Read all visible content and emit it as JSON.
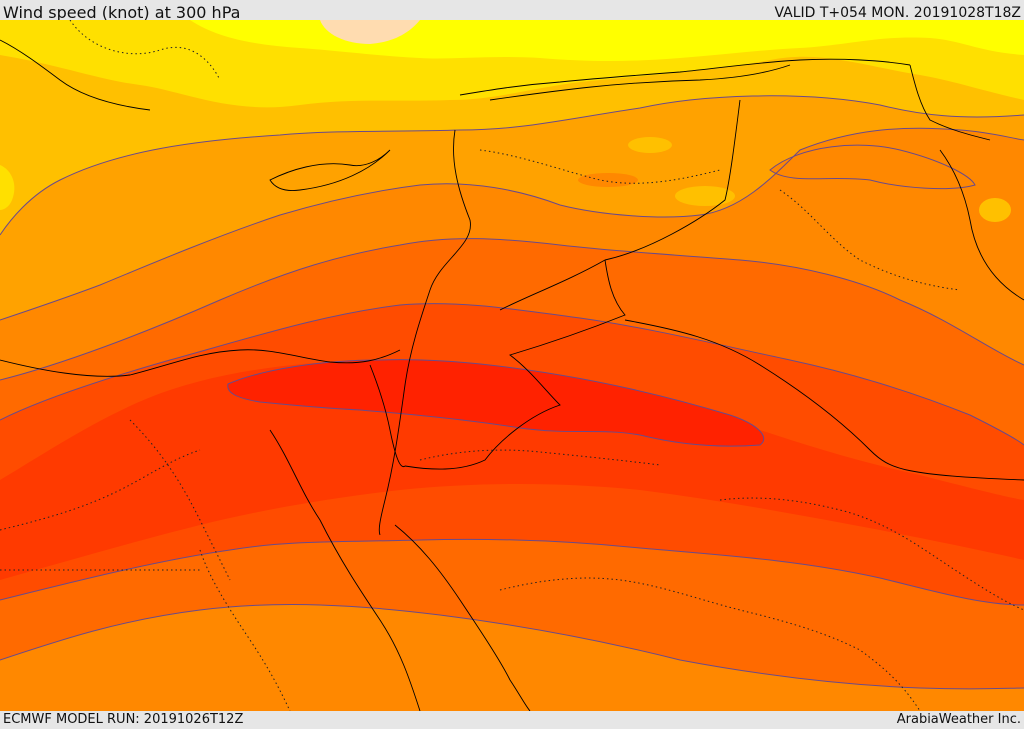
{
  "header": {
    "title": "Wind speed (knot) at 300 hPa",
    "valid": "VALID T+054 MON. 20191028T18Z"
  },
  "footer": {
    "model_run": "ECMWF MODEL RUN: 20191026T12Z",
    "credit": "ArabiaWeather Inc."
  },
  "map": {
    "variable": "wind speed",
    "units": "knot",
    "level_hPa": 300,
    "colors": {
      "band_1": "#ffff00",
      "band_2": "#ffe000",
      "band_3": "#ffc000",
      "band_4": "#ffa200",
      "band_5": "#ff8800",
      "band_6": "#ff6a00",
      "band_7": "#ff4c00",
      "band_8": "#ff3a00",
      "band_9": "#ff2200",
      "land_pale": "#ffdcb0",
      "contour_line": "#6a4a8a",
      "border_line": "#000000"
    }
  }
}
